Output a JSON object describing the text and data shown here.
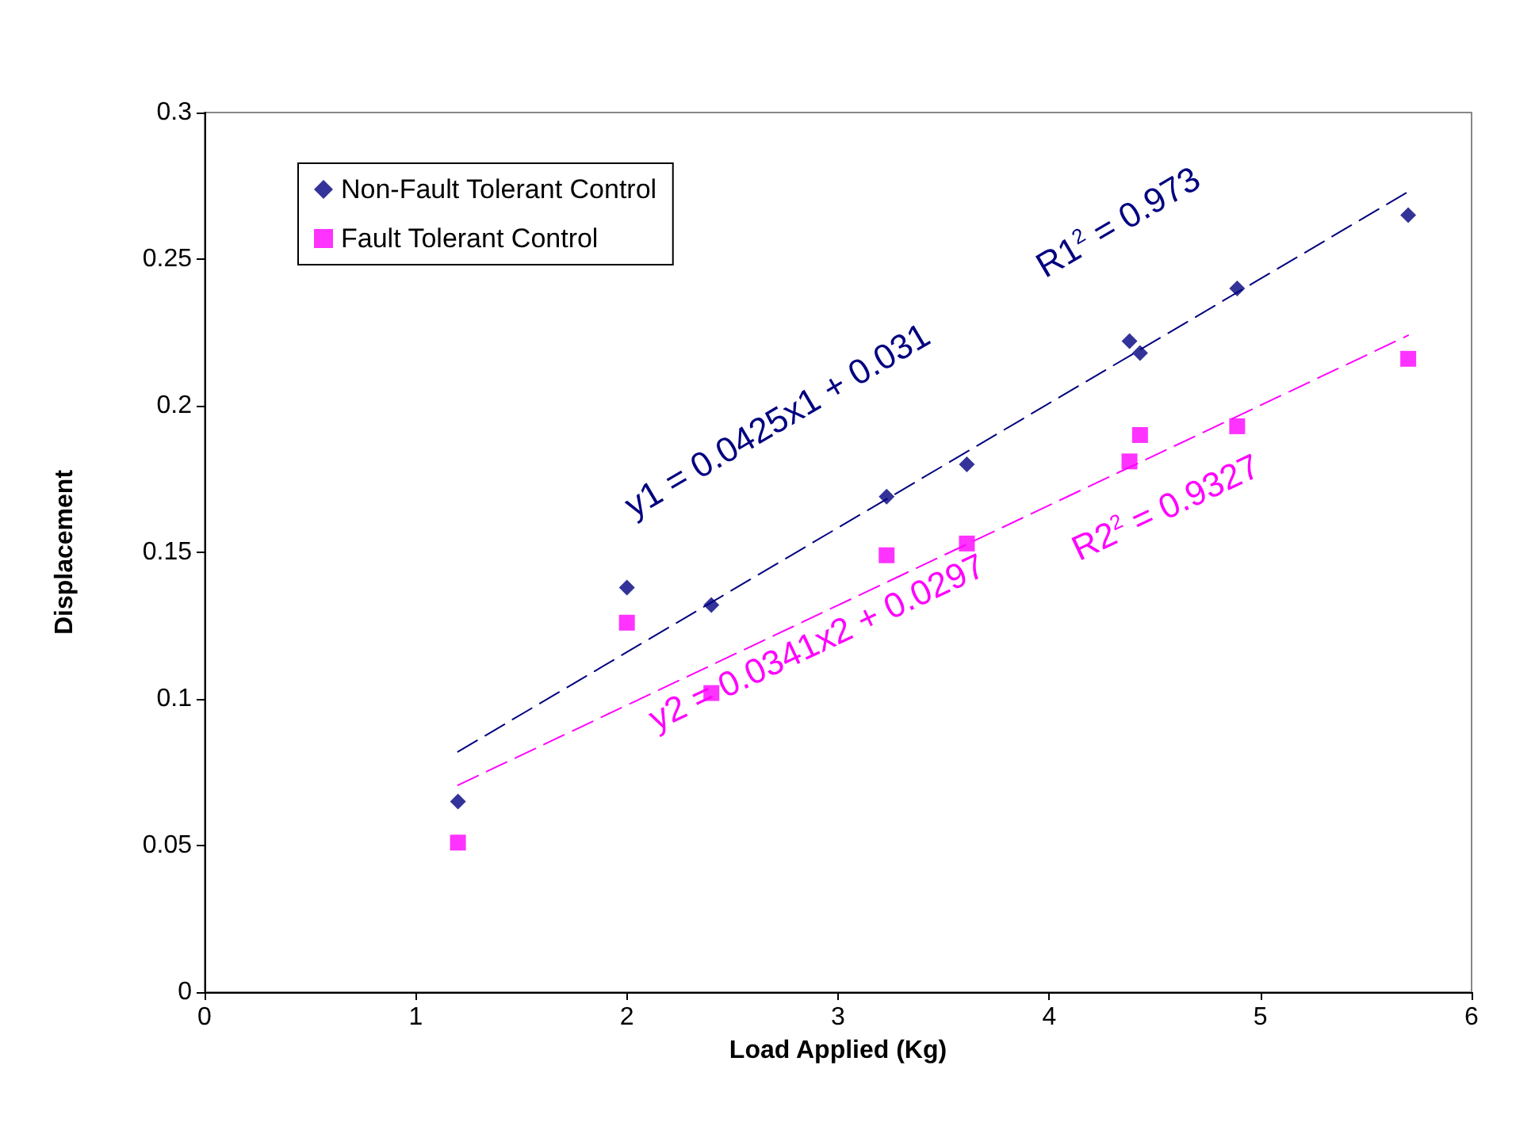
{
  "chart_data": {
    "type": "scatter",
    "xlabel": "Load Applied (Kg)",
    "ylabel": "Displacement",
    "xlim": [
      0,
      6
    ],
    "xticks": [
      0,
      1,
      2,
      3,
      4,
      5,
      6
    ],
    "ylim": [
      0,
      0.3
    ],
    "yticks": [
      0,
      0.05,
      0.1,
      0.15,
      0.2,
      0.25,
      0.3
    ],
    "grid": false,
    "legend": "top left",
    "series": [
      {
        "name": "Non-Fault Tolerant Control",
        "color": "#000080",
        "marker": "diamond",
        "x": [
          1.2,
          2.0,
          2.4,
          3.23,
          3.61,
          4.38,
          4.43,
          4.89,
          5.7
        ],
        "values": [
          0.065,
          0.138,
          0.132,
          0.169,
          0.18,
          0.222,
          0.218,
          0.24,
          0.265
        ]
      },
      {
        "name": "Fault Tolerant Control",
        "color": "#ff00ff",
        "marker": "square",
        "x": [
          1.2,
          2.0,
          2.4,
          3.23,
          3.61,
          4.38,
          4.43,
          4.89,
          5.7
        ],
        "values": [
          0.051,
          0.126,
          0.102,
          0.149,
          0.153,
          0.181,
          0.19,
          0.193,
          0.216
        ]
      },
      {
        "type": "line",
        "color": "#000080",
        "line_style": "dashed",
        "x": [
          1.2,
          5.7
        ],
        "values": [
          0.082,
          0.273
        ]
      },
      {
        "type": "line",
        "color": "#ff00ff",
        "line_style": "dashed",
        "x": [
          1.2,
          5.7
        ],
        "values": [
          0.0706,
          0.224
        ]
      }
    ],
    "annotations": [
      "y1 = 0.0425x1 + 0.031",
      "R1$^{2}$ = 0.973",
      "y2 = 0.0341x2 + 0.0297",
      "R2$^{2}$ = 0.9327"
    ]
  }
}
